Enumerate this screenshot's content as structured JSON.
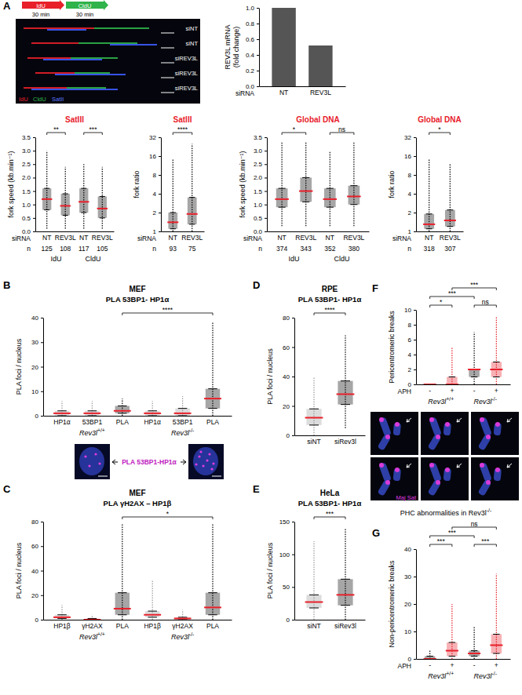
{
  "panel_labels": [
    "A",
    "B",
    "C",
    "D",
    "E",
    "F",
    "G"
  ],
  "images": {
    "A": {
      "pulse_labels": [
        "IdU",
        "CldU"
      ],
      "durations": [
        "30 min",
        "30 min"
      ],
      "rows": [
        "siNT",
        "siNT",
        "siREV3L",
        "siREV3L",
        "siREV3L"
      ],
      "legend": [
        "IdU",
        "CldU",
        "SatII"
      ]
    },
    "B": {
      "caption": "PLA 53BP1-HP1α"
    },
    "F": {
      "stain": "Maj Sat",
      "caption": "PHC abnormalities in Rev3l-/-"
    }
  },
  "chart_data": [
    {
      "type": "bar",
      "categories": [
        "NT",
        "REV3L"
      ],
      "values": [
        1.0,
        0.52
      ],
      "color": "#555555",
      "ylim": [
        0,
        1.0
      ],
      "yticks": [
        {
          "value": 0,
          "label": "0.0"
        },
        {
          "value": 0.2,
          "label": "0.2"
        },
        {
          "value": 0.4,
          "label": "0.4"
        },
        {
          "value": 0.6,
          "label": "0.6"
        },
        {
          "value": 0.8,
          "label": "0.8"
        },
        {
          "value": 1,
          "label": "1.0"
        }
      ],
      "y_label": [
        "REV3L mRNA",
        "(fold change)"
      ],
      "x_label": "siRNA"
    },
    {
      "type": "dot",
      "title": "SatIII",
      "y_label": "fork speed (kb.min⁻¹)",
      "category_label": "siRNA",
      "categories": [
        "NT",
        "REV3L",
        "NT",
        "REV3L"
      ],
      "n_label": "n",
      "n": [
        125,
        108,
        117,
        105
      ],
      "groups": [
        "IdU",
        "CldU"
      ],
      "values": [
        1.2,
        0.95,
        1.1,
        0.85
      ],
      "q1": [
        0.8,
        0.6,
        0.7,
        0.5
      ],
      "q3": [
        1.6,
        1.4,
        1.6,
        1.3
      ],
      "min": [
        0.1,
        0.1,
        0.1,
        0.1
      ],
      "max": [
        3.0,
        2.4,
        2.5,
        2.4
      ],
      "colors": [
        "#000000",
        "#000000",
        "#000000",
        "#000000"
      ],
      "ylim": [
        0,
        3.5
      ],
      "yticks": [
        {
          "value": 0,
          "label": "0.0"
        },
        {
          "value": 0.5,
          "label": "0.5"
        },
        {
          "value": 1,
          "label": "1.0"
        },
        {
          "value": 1.5,
          "label": "1.5"
        },
        {
          "value": 2,
          "label": "2.0"
        },
        {
          "value": 2.5,
          "label": "2.5"
        },
        {
          "value": 3,
          "label": "3.0"
        },
        {
          "value": 3.5,
          "label": "3.5"
        }
      ],
      "comparisons": [
        {
          "from": 0,
          "to": 1,
          "label": "**"
        },
        {
          "from": 2,
          "to": 3,
          "label": "***"
        }
      ]
    },
    {
      "type": "dot",
      "title": "SatIII",
      "y_label": "fork ratio",
      "category_label": "siRNA",
      "log": "y",
      "categories": [
        "NT",
        "REV3L"
      ],
      "n_label": "n",
      "n": [
        93,
        75
      ],
      "values": [
        1.4,
        1.9
      ],
      "q1": [
        1.1,
        1.3
      ],
      "q3": [
        2.0,
        3.5
      ],
      "min": [
        1,
        1
      ],
      "max": [
        14,
        25
      ],
      "colors": [
        "#000000",
        "#000000"
      ],
      "ylim": [
        1,
        32
      ],
      "yticks": [
        1,
        2,
        4,
        8,
        16,
        32
      ],
      "comparisons": [
        {
          "from": 0,
          "to": 1,
          "label": "****"
        }
      ]
    },
    {
      "type": "dot",
      "title": "Global DNA",
      "y_label": "fork speed (kb.min⁻¹)",
      "category_label": "siRNA",
      "categories": [
        "NT",
        "REV3L",
        "NT",
        "REV3L"
      ],
      "n_label": "n",
      "n": [
        374,
        343,
        352,
        380
      ],
      "groups": [
        "IdU",
        "CldU"
      ],
      "values": [
        1.2,
        1.5,
        1.2,
        1.3
      ],
      "q1": [
        0.9,
        1.1,
        0.9,
        1.0
      ],
      "q3": [
        1.6,
        2.0,
        1.6,
        1.7
      ],
      "min": [
        0.2,
        0.2,
        0.2,
        0.2
      ],
      "max": [
        3.3,
        3.3,
        3.0,
        3.3
      ],
      "colors": [
        "#000000",
        "#000000",
        "#000000",
        "#000000"
      ],
      "ylim": [
        0,
        3.5
      ],
      "yticks": [
        {
          "value": 0,
          "label": "0.0"
        },
        {
          "value": 0.5,
          "label": "0.5"
        },
        {
          "value": 1,
          "label": "1.0"
        },
        {
          "value": 1.5,
          "label": "1.5"
        },
        {
          "value": 2,
          "label": "2.0"
        },
        {
          "value": 2.5,
          "label": "2.5"
        },
        {
          "value": 3,
          "label": "3.0"
        },
        {
          "value": 3.5,
          "label": "3.5"
        }
      ],
      "comparisons": [
        {
          "from": 0,
          "to": 1,
          "label": "*"
        },
        {
          "from": 2,
          "to": 3,
          "label": "ns"
        }
      ]
    },
    {
      "type": "dot",
      "title": "Global DNA",
      "y_label": "fork ratio",
      "category_label": "siRNA",
      "log": "y",
      "categories": [
        "NT",
        "REV3L"
      ],
      "n_label": "n",
      "n": [
        318,
        307
      ],
      "values": [
        1.3,
        1.5
      ],
      "q1": [
        1.1,
        1.2
      ],
      "q3": [
        1.9,
        2.2
      ],
      "min": [
        1,
        1
      ],
      "max": [
        14,
        12
      ],
      "colors": [
        "#000000",
        "#000000"
      ],
      "ylim": [
        1,
        32
      ],
      "yticks": [
        1,
        2,
        4,
        8,
        16,
        32
      ],
      "comparisons": [
        {
          "from": 0,
          "to": 1,
          "label": "*"
        }
      ]
    },
    {
      "type": "dot",
      "title": "MEF",
      "subtitle": "PLA 53BP1- HP1α",
      "y_label": "PLA foci / nucleus",
      "categories": [
        "HP1α",
        "53BP1",
        "PLA",
        "HP1α",
        "53BP1",
        "PLA"
      ],
      "groups": [
        "Rev3l+/+",
        "Rev3l-/-"
      ],
      "values": [
        1,
        1,
        2,
        1,
        1,
        7
      ],
      "q1": [
        0,
        0,
        1,
        0,
        0,
        3
      ],
      "q3": [
        2,
        2,
        4,
        2,
        3,
        11
      ],
      "min": [
        0,
        0,
        0,
        0,
        0,
        0
      ],
      "max": [
        6,
        6,
        7,
        6,
        8,
        38
      ],
      "colors": [
        "#9a9a9a",
        "#9a9a9a",
        "#000000",
        "#9a9a9a",
        "#9a9a9a",
        "#000000"
      ],
      "ylim": [
        0,
        40
      ],
      "yticks": [
        0,
        10,
        20,
        30,
        40
      ],
      "comparisons": [
        {
          "from": 2,
          "to": 5,
          "label": "****"
        }
      ]
    },
    {
      "type": "dot",
      "title": "MEF",
      "subtitle": "PLA γH2AX – HP1β",
      "y_label": "PLA foci / nucleus",
      "categories": [
        "HP1β",
        "γH2AX",
        "PLA",
        "HP1β",
        "γH2AX",
        "PLA"
      ],
      "groups": [
        "Rev3l+/+",
        "Rev3l-/-"
      ],
      "values": [
        2,
        0,
        9,
        4,
        1,
        10
      ],
      "q1": [
        1,
        0,
        4,
        2,
        0,
        4
      ],
      "q3": [
        4,
        1,
        22,
        7,
        2,
        22
      ],
      "min": [
        0,
        0,
        0,
        0,
        0,
        0
      ],
      "max": [
        12,
        4,
        78,
        32,
        8,
        78
      ],
      "colors": [
        "#9a9a9a",
        "#9a9a9a",
        "#000000",
        "#9a9a9a",
        "#9a9a9a",
        "#000000"
      ],
      "ylim": [
        0,
        80
      ],
      "yticks": [
        0,
        20,
        40,
        60,
        80
      ],
      "comparisons": [
        {
          "from": 2,
          "to": 5,
          "label": "*"
        }
      ]
    },
    {
      "type": "dot",
      "title": "RPE",
      "subtitle": "PLA 53BP1- HP1α",
      "y_label": "PLA foci / nucleus",
      "categories": [
        "siNT",
        "siRev3l"
      ],
      "values": [
        12,
        28
      ],
      "q1": [
        7,
        21
      ],
      "q3": [
        18,
        37
      ],
      "min": [
        0,
        5
      ],
      "max": [
        40,
        68
      ],
      "colors": [
        "#9a9a9a",
        "#000000"
      ],
      "ylim": [
        0,
        80
      ],
      "yticks": [
        0,
        20,
        40,
        60,
        80
      ],
      "comparisons": [
        {
          "from": 0,
          "to": 1,
          "label": "****"
        }
      ]
    },
    {
      "type": "dot",
      "title": "HeLa",
      "subtitle": "PLA 53BP1- HP1α",
      "y_label": "PLA foci / nucleus",
      "categories": [
        "siNT",
        "siRev3l"
      ],
      "values": [
        27,
        38
      ],
      "q1": [
        18,
        22
      ],
      "q3": [
        38,
        62
      ],
      "min": [
        0,
        0
      ],
      "max": [
        120,
        140
      ],
      "colors": [
        "#9a9a9a",
        "#000000"
      ],
      "ylim": [
        0,
        150
      ],
      "yticks": [
        0,
        50,
        100,
        150
      ],
      "comparisons": [
        {
          "from": 0,
          "to": 1,
          "label": "***"
        }
      ]
    },
    {
      "type": "dot",
      "y_label": "Pericentromeric breaks",
      "category_label": "APH",
      "categories": [
        "-",
        "+",
        "-",
        "+"
      ],
      "groups": [
        "Rev3l+/+",
        "Rev3l-/-"
      ],
      "values": [
        0,
        0,
        2,
        2
      ],
      "q1": [
        0,
        0,
        1,
        1
      ],
      "q3": [
        0,
        1,
        2,
        3
      ],
      "min": [
        0,
        0,
        0,
        0
      ],
      "max": [
        0,
        5,
        7,
        9
      ],
      "colors": [
        "#000000",
        "#e8202a",
        "#000000",
        "#e8202a"
      ],
      "ylim": [
        0,
        10
      ],
      "yticks": [
        0,
        2,
        4,
        6,
        8,
        10
      ],
      "comparisons": [
        {
          "from": 0,
          "to": 1,
          "label": "*"
        },
        {
          "from": 0,
          "to": 2,
          "label": "***"
        },
        {
          "from": 1,
          "to": 3,
          "label": "***"
        },
        {
          "from": 2,
          "to": 3,
          "label": "ns"
        }
      ]
    },
    {
      "type": "dot",
      "y_label": "Non-pericentromeric breaks",
      "category_label": "APH",
      "categories": [
        "-",
        "+",
        "-",
        "+"
      ],
      "groups": [
        "Rev3l+/+",
        "Rev3l-/-"
      ],
      "values": [
        0,
        3,
        2,
        5
      ],
      "q1": [
        0,
        1,
        1,
        2
      ],
      "q3": [
        1,
        6,
        3,
        9
      ],
      "min": [
        0,
        0,
        0,
        0
      ],
      "max": [
        3,
        20,
        12,
        31
      ],
      "colors": [
        "#000000",
        "#e8202a",
        "#000000",
        "#e8202a"
      ],
      "ylim": [
        0,
        40
      ],
      "yticks": [
        0,
        10,
        20,
        30,
        40
      ],
      "comparisons": [
        {
          "from": 0,
          "to": 1,
          "label": "***"
        },
        {
          "from": 0,
          "to": 2,
          "label": "***"
        },
        {
          "from": 2,
          "to": 3,
          "label": "***"
        },
        {
          "from": 1,
          "to": 3,
          "label": "ns"
        }
      ]
    }
  ]
}
